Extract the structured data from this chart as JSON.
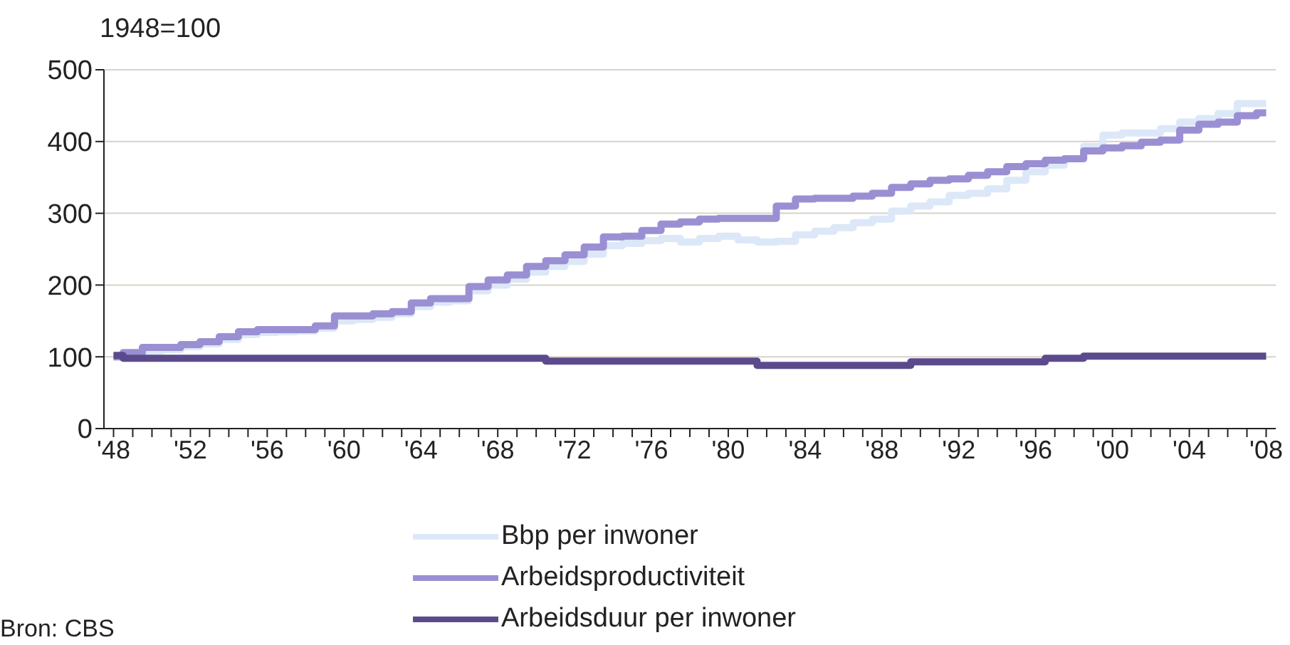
{
  "chart_data": {
    "type": "step",
    "ylabel": "1948=100",
    "categories": [
      "'48",
      null,
      null,
      null,
      "'52",
      null,
      null,
      null,
      "'56",
      null,
      null,
      null,
      "'60",
      null,
      null,
      null,
      "'64",
      null,
      null,
      null,
      "'68",
      null,
      null,
      null,
      "'72",
      null,
      null,
      null,
      "'76",
      null,
      null,
      null,
      "'80",
      null,
      null,
      null,
      "'84",
      null,
      null,
      null,
      "'88",
      null,
      null,
      null,
      "'92",
      null,
      null,
      null,
      "'96",
      null,
      null,
      null,
      "'00",
      null,
      null,
      null,
      "'04",
      null,
      null,
      null,
      "'08"
    ],
    "series": [
      {
        "name": "Bbp per inwoner",
        "color": "#dce8f8",
        "values": [
          100,
          103,
          108,
          110,
          114,
          118,
          124,
          131,
          134,
          135,
          136,
          140,
          150,
          152,
          155,
          160,
          170,
          176,
          178,
          192,
          200,
          208,
          218,
          226,
          233,
          243,
          255,
          258,
          262,
          265,
          260,
          265,
          268,
          263,
          260,
          261,
          270,
          275,
          280,
          287,
          292,
          303,
          310,
          316,
          325,
          328,
          334,
          346,
          358,
          367,
          376,
          393,
          409,
          412,
          412,
          418,
          427,
          432,
          439,
          453,
          453
        ]
      },
      {
        "name": "Arbeidsproductiviteit",
        "color": "#9b8fd3",
        "values": [
          100,
          106,
          113,
          113,
          117,
          121,
          128,
          135,
          138,
          138,
          138,
          143,
          157,
          157,
          160,
          163,
          175,
          181,
          181,
          198,
          207,
          214,
          226,
          234,
          242,
          253,
          267,
          268,
          276,
          285,
          288,
          292,
          293,
          293,
          293,
          310,
          320,
          321,
          321,
          324,
          328,
          336,
          341,
          346,
          348,
          353,
          358,
          365,
          369,
          374,
          376,
          387,
          391,
          394,
          399,
          402,
          416,
          424,
          427,
          436,
          440
        ]
      },
      {
        "name": "Arbeidsduur per inwoner",
        "color": "#5b4b8c",
        "values": [
          102,
          98,
          98,
          98,
          98,
          98,
          98,
          98,
          98,
          98,
          98,
          98,
          98,
          98,
          98,
          98,
          98,
          98,
          98,
          98,
          98,
          98,
          98,
          94,
          94,
          94,
          94,
          94,
          94,
          94,
          94,
          94,
          94,
          94,
          88,
          88,
          88,
          88,
          88,
          88,
          88,
          88,
          93,
          93,
          93,
          93,
          93,
          93,
          93,
          98,
          98,
          101,
          101,
          101,
          101,
          101,
          101,
          101,
          101,
          101,
          101
        ]
      }
    ],
    "ylim": [
      0,
      500
    ],
    "yticks": [
      0,
      100,
      200,
      300,
      400,
      500
    ],
    "grid": "y",
    "legend": "bottom",
    "annotations": [
      "Bron: CBS"
    ]
  }
}
